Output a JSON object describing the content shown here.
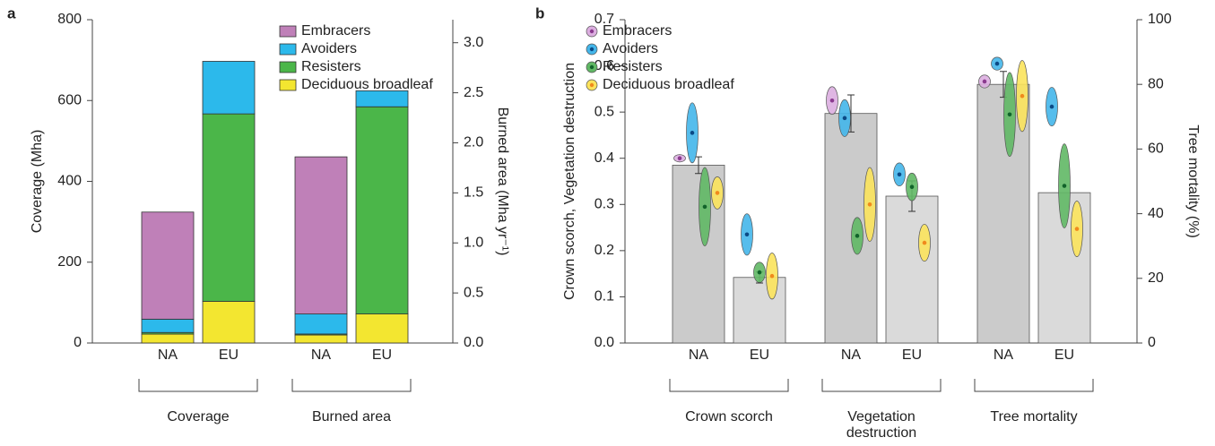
{
  "chart_data": [
    {
      "type": "stacked-bar",
      "panel": "a",
      "y_label": "Coverage (Mha)",
      "y2_label": "Burned area (Mha yr⁻¹)",
      "ylim": [
        0,
        800
      ],
      "yticks": [
        0,
        200,
        400,
        600,
        800
      ],
      "y2lim": [
        0,
        3.23
      ],
      "y2ticks": [
        {
          "value": 0,
          "label": "0.0"
        },
        0.5,
        {
          "value": 1,
          "label": "1.0"
        },
        1.5,
        {
          "value": 2,
          "label": "2.0"
        },
        2.5,
        {
          "value": 3,
          "label": "3.0"
        }
      ],
      "legend": "top-right",
      "groups": [
        {
          "label": "Coverage",
          "axis": "y",
          "categories": [
            "NA",
            "EU"
          ]
        },
        {
          "label": "Burned area",
          "axis": "y2",
          "categories": [
            "NA",
            "EU"
          ]
        }
      ],
      "series": [
        {
          "name": "Embracers",
          "color": "#bf80b8",
          "values": [
            [
              265,
              0
            ],
            [
              1.57,
              0
            ]
          ]
        },
        {
          "name": "Avoiders",
          "color": "#2cb9eb",
          "values": [
            [
              33,
              130
            ],
            [
              0.2,
              0.16
            ]
          ]
        },
        {
          "name": "Resisters",
          "color": "#4bb649",
          "values": [
            [
              4,
              464
            ],
            [
              0.01,
              2.07
            ]
          ]
        },
        {
          "name": "Deciduous broadleaf",
          "color": "#f3e630",
          "values": [
            [
              22,
              103
            ],
            [
              0.08,
              0.29
            ]
          ]
        }
      ]
    },
    {
      "type": "bar-ovals",
      "panel": "b",
      "y_label": "Crown scorch, Vegetation destruction",
      "y2_label": "Tree mortality (%)",
      "ylim": [
        0,
        0.7
      ],
      "yticks": [
        {
          "value": 0,
          "label": "0.0"
        },
        0.1,
        0.2,
        0.3,
        0.4,
        0.5,
        0.6,
        0.7
      ],
      "y2lim": [
        0,
        100
      ],
      "y2ticks": [
        0,
        20,
        40,
        60,
        80,
        100
      ],
      "legend": "top-left",
      "groups": [
        {
          "label": "Crown scorch",
          "axis": "y",
          "categories": [
            "NA",
            "EU"
          ],
          "values": [
            0.385,
            0.142
          ],
          "errors": [
            0.018,
            0.012
          ],
          "colors": [
            "#cbcbcb",
            "#dadada"
          ]
        },
        {
          "label": "Vegetation destruction",
          "axis": "y",
          "categories": [
            "NA",
            "EU"
          ],
          "values": [
            0.497,
            0.318
          ],
          "errors": [
            0.04,
            0.033
          ],
          "colors": [
            "#cbcbcb",
            "#dadada"
          ]
        },
        {
          "label": "Tree mortality",
          "axis": "y2",
          "categories": [
            "NA",
            "EU"
          ],
          "values": [
            80,
            46.5
          ],
          "errors": [
            4,
            null
          ],
          "colors": [
            "#cbcbcb",
            "#dadada"
          ]
        }
      ],
      "series": [
        {
          "name": "Embracers",
          "color": "#dcaee0",
          "dot": "#8b3a8f",
          "values": [
            [
              0.4,
              null
            ],
            [
              0.525,
              null
            ],
            [
              80.9,
              null
            ]
          ],
          "spreads": [
            [
              0.008,
              null
            ],
            [
              0.03,
              null
            ],
            [
              2,
              null
            ]
          ]
        },
        {
          "name": "Avoiders",
          "color": "#44b6ea",
          "dot": "#0b4a86",
          "values": [
            [
              0.455,
              0.235
            ],
            [
              0.487,
              0.365
            ],
            [
              86.4,
              73.1
            ]
          ],
          "spreads": [
            [
              0.065,
              0.045
            ],
            [
              0.04,
              0.025
            ],
            [
              2,
              6
            ]
          ]
        },
        {
          "name": "Resisters",
          "color": "#61b865",
          "dot": "#11632a",
          "values": [
            [
              0.295,
              0.153
            ],
            [
              0.232,
              0.338
            ],
            [
              70.7,
              48.6
            ]
          ],
          "spreads": [
            [
              0.085,
              0.022
            ],
            [
              0.04,
              0.03
            ],
            [
              13,
              13
            ]
          ]
        },
        {
          "name": "Deciduous broadleaf",
          "color": "#fbe35c",
          "dot": "#f08a1c",
          "values": [
            [
              0.325,
              0.145
            ],
            [
              0.3,
              0.217
            ],
            [
              76.4,
              35.3
            ]
          ],
          "spreads": [
            [
              0.035,
              0.05
            ],
            [
              0.08,
              0.04
            ],
            [
              11,
              8.6
            ]
          ]
        }
      ]
    }
  ]
}
